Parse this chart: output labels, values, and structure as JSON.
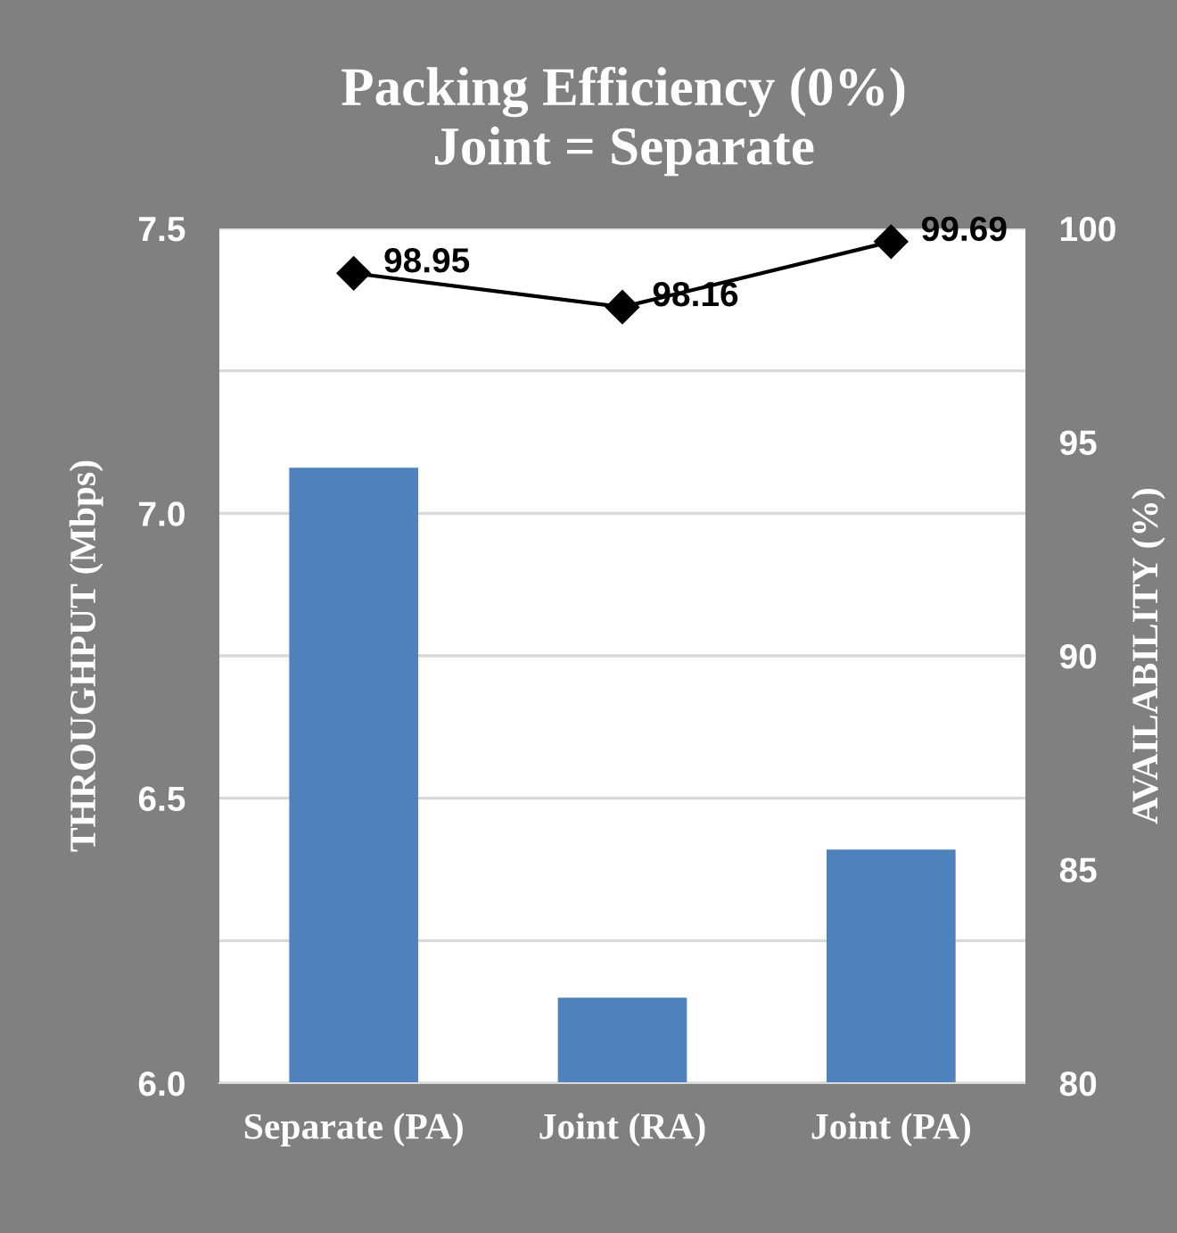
{
  "chart_data": {
    "type": "bar",
    "title": "Packing Efficiency (0%)\nJoint = Separate",
    "ylabel": "THROUGHPUT (Mbps)",
    "y2label": "AVAILABILITY (%)",
    "categories": [
      "Separate (PA)",
      "Joint (RA)",
      "Joint (PA)"
    ],
    "series": [
      {
        "color": "#4f81bd",
        "values": [
          7.08,
          6.15,
          6.41
        ]
      },
      {
        "type": "line",
        "axis": "y2",
        "color": "#000000",
        "marker": "diamond",
        "line_style": "solid",
        "values": [
          98.95,
          98.16,
          99.69
        ],
        "value_labels": [
          "98.95",
          "98.16",
          "99.69"
        ]
      }
    ],
    "ylim": [
      6.0,
      7.5
    ],
    "yticks": [
      {
        "value": 6.0,
        "label": "6.0"
      },
      {
        "value": 6.25,
        "label": null
      },
      {
        "value": 6.5,
        "label": "6.5"
      },
      {
        "value": 6.75,
        "label": null
      },
      {
        "value": 7.0,
        "label": "7.0"
      },
      {
        "value": 7.25,
        "label": null
      },
      {
        "value": 7.5,
        "label": "7.5"
      }
    ],
    "y2lim": [
      80,
      100
    ],
    "y2ticks": [
      80,
      85,
      90,
      95,
      100
    ],
    "grid": "y",
    "legend": false
  }
}
